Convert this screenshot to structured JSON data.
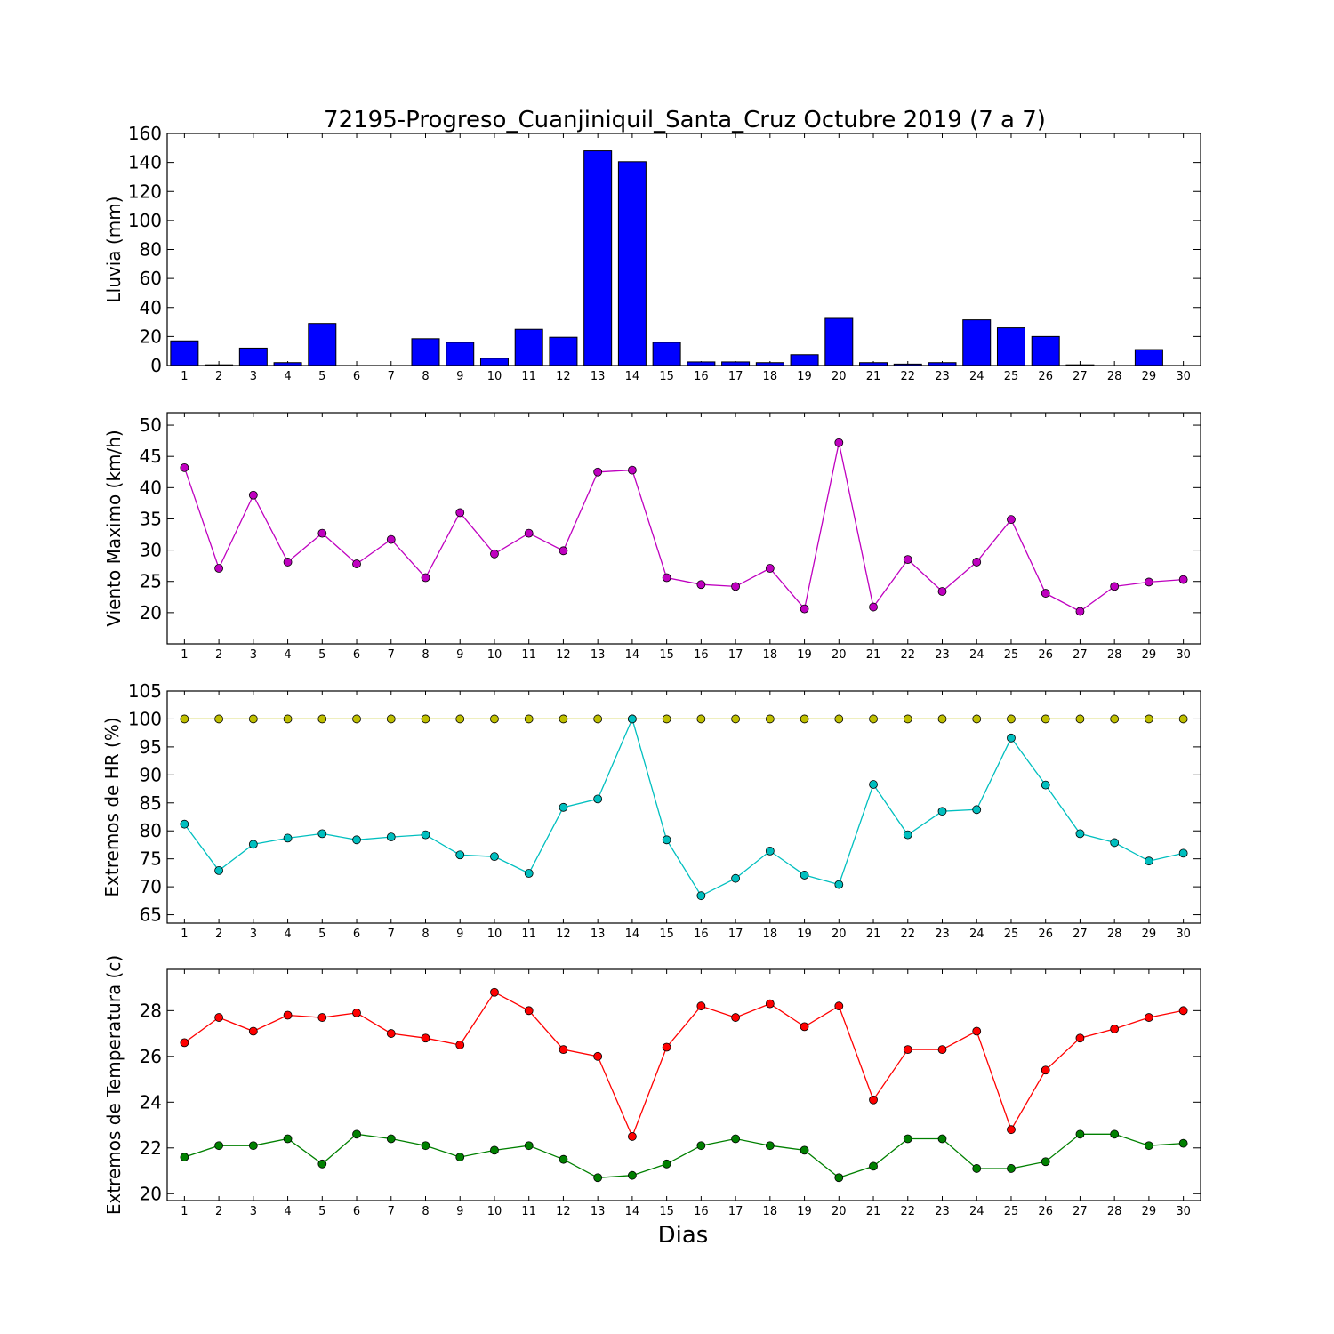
{
  "title": "72195-Progreso_Cuanjiniquil_Santa_Cruz Octubre 2019  (7 a 7)",
  "xlabel": "Dias",
  "chart_data": [
    {
      "id": "rain",
      "type": "bar",
      "ylabel": "Lluvia (mm)",
      "xlim": [
        0.5,
        30.5
      ],
      "ylim": [
        0,
        160
      ],
      "yticks": [
        0,
        20,
        40,
        60,
        80,
        100,
        120,
        140,
        160
      ],
      "x": [
        1,
        2,
        3,
        4,
        5,
        6,
        7,
        8,
        9,
        10,
        11,
        12,
        13,
        14,
        15,
        16,
        17,
        18,
        19,
        20,
        21,
        22,
        23,
        24,
        25,
        26,
        27,
        28,
        29,
        30
      ],
      "series": [
        {
          "color": "#0000ff",
          "values": [
            17,
            0.5,
            12,
            2,
            29,
            0,
            0,
            18.5,
            16,
            5,
            25,
            19.5,
            148,
            140.5,
            16,
            2.5,
            2.5,
            2,
            7.5,
            32.5,
            2,
            1,
            2,
            31.5,
            26,
            20,
            0.5,
            0,
            11,
            0
          ]
        }
      ]
    },
    {
      "id": "wind",
      "type": "line",
      "ylabel": "Viento Maximo (km/h)",
      "xlim": [
        0.5,
        30.5
      ],
      "ylim": [
        15,
        52
      ],
      "yticks": [
        20,
        25,
        30,
        35,
        40,
        45,
        50
      ],
      "x": [
        1,
        2,
        3,
        4,
        5,
        6,
        7,
        8,
        9,
        10,
        11,
        12,
        13,
        14,
        15,
        16,
        17,
        18,
        19,
        20,
        21,
        22,
        23,
        24,
        25,
        26,
        27,
        28,
        29,
        30
      ],
      "series": [
        {
          "color": "#bf00bf",
          "values": [
            43.2,
            27.1,
            38.8,
            28.1,
            32.7,
            27.8,
            31.7,
            25.6,
            36,
            29.4,
            32.7,
            29.9,
            42.5,
            42.8,
            25.6,
            24.5,
            24.2,
            27.1,
            20.6,
            47.2,
            20.9,
            28.5,
            23.4,
            28.1,
            34.9,
            23.1,
            20.2,
            24.2,
            24.9,
            25.3
          ]
        }
      ]
    },
    {
      "id": "humidity",
      "type": "line",
      "ylabel": "Extremos de HR (%)",
      "xlim": [
        0.5,
        30.5
      ],
      "ylim": [
        63.5,
        105
      ],
      "yticks": [
        65,
        70,
        75,
        80,
        85,
        90,
        95,
        100,
        105
      ],
      "x": [
        1,
        2,
        3,
        4,
        5,
        6,
        7,
        8,
        9,
        10,
        11,
        12,
        13,
        14,
        15,
        16,
        17,
        18,
        19,
        20,
        21,
        22,
        23,
        24,
        25,
        26,
        27,
        28,
        29,
        30
      ],
      "series": [
        {
          "color": "#bfbf00",
          "values": [
            100,
            100,
            100,
            100,
            100,
            100,
            100,
            100,
            100,
            100,
            100,
            100,
            100,
            100,
            100,
            100,
            100,
            100,
            100,
            100,
            100,
            100,
            100,
            100,
            100,
            100,
            100,
            100,
            100,
            100
          ]
        },
        {
          "color": "#00bfbf",
          "values": [
            81.2,
            72.9,
            77.6,
            78.7,
            79.5,
            78.4,
            78.9,
            79.3,
            75.7,
            75.4,
            72.4,
            84.2,
            85.7,
            100,
            78.4,
            68.4,
            71.5,
            76.4,
            72.1,
            70.4,
            88.3,
            79.3,
            83.5,
            83.8,
            96.6,
            88.2,
            79.5,
            77.9,
            74.6,
            76
          ]
        }
      ]
    },
    {
      "id": "temperature",
      "type": "line",
      "ylabel": "Extremos de Temperatura (c)",
      "xlim": [
        0.5,
        30.5
      ],
      "ylim": [
        19.7,
        29.8
      ],
      "yticks": [
        20,
        22,
        24,
        26,
        28
      ],
      "x": [
        1,
        2,
        3,
        4,
        5,
        6,
        7,
        8,
        9,
        10,
        11,
        12,
        13,
        14,
        15,
        16,
        17,
        18,
        19,
        20,
        21,
        22,
        23,
        24,
        25,
        26,
        27,
        28,
        29,
        30
      ],
      "series": [
        {
          "color": "#ff0000",
          "values": [
            26.6,
            27.7,
            27.1,
            27.8,
            27.7,
            27.9,
            27,
            26.8,
            26.5,
            28.8,
            28,
            26.3,
            26,
            22.5,
            26.4,
            28.2,
            27.7,
            28.3,
            27.3,
            28.2,
            24.1,
            26.3,
            26.3,
            27.1,
            22.8,
            25.4,
            26.8,
            27.2,
            27.7,
            28
          ]
        },
        {
          "color": "#008000",
          "values": [
            21.6,
            22.1,
            22.1,
            22.4,
            21.3,
            22.6,
            22.4,
            22.1,
            21.6,
            21.9,
            22.1,
            21.5,
            20.7,
            20.8,
            21.3,
            22.1,
            22.4,
            22.1,
            21.9,
            20.7,
            21.2,
            22.4,
            22.4,
            21.1,
            21.1,
            21.4,
            22.6,
            22.6,
            22.1,
            22.2
          ]
        }
      ]
    }
  ]
}
